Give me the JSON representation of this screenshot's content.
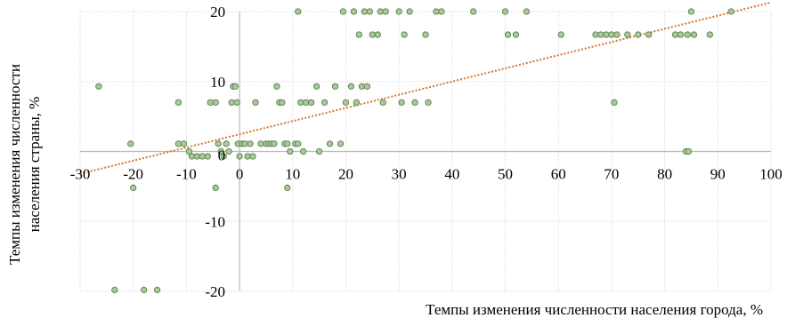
{
  "chart_data": {
    "type": "scatter",
    "title": "",
    "xlabel": "Темпы изменения численности населения города, %",
    "ylabel_lines": [
      "Темпы изменения численности",
      "населения страны, %"
    ],
    "xlim": [
      -30,
      100
    ],
    "ylim": [
      -20,
      20
    ],
    "xticks": [
      -30,
      -20,
      -10,
      0,
      10,
      20,
      30,
      40,
      50,
      60,
      70,
      80,
      90,
      100
    ],
    "yticks": [
      -20,
      -10,
      0,
      10,
      20
    ],
    "grid": true,
    "trendline": {
      "type": "linear",
      "from": [
        -30,
        -3.2
      ],
      "to": [
        100,
        21.3
      ]
    },
    "colors": {
      "marker_fill": "#a9c99a",
      "marker_stroke": "#5a7f4d",
      "trend": "#d9752b",
      "grid": "#dddddd",
      "axis": "#bbbbbb"
    },
    "points": [
      [
        -26.5,
        9.3
      ],
      [
        -23.5,
        -19.8
      ],
      [
        -18,
        -19.8
      ],
      [
        -15.5,
        -19.8
      ],
      [
        -20,
        -5.2
      ],
      [
        -20.5,
        1.1
      ],
      [
        -11.5,
        7
      ],
      [
        -11.5,
        1.1
      ],
      [
        -10.5,
        1.1
      ],
      [
        -9.5,
        0
      ],
      [
        -9,
        -0.7
      ],
      [
        -8,
        -0.7
      ],
      [
        -7,
        -0.7
      ],
      [
        -6,
        -0.7
      ],
      [
        -5.5,
        7
      ],
      [
        -4.5,
        7
      ],
      [
        -4,
        1.1
      ],
      [
        -3.5,
        0
      ],
      [
        -3,
        -0.7
      ],
      [
        -2.5,
        1.1
      ],
      [
        -4.5,
        -5.2
      ],
      [
        -2,
        0
      ],
      [
        -1.5,
        7
      ],
      [
        -1.2,
        9.3
      ],
      [
        -0.8,
        9.3
      ],
      [
        -0.5,
        7
      ],
      [
        -0.3,
        1.1
      ],
      [
        0,
        -0.7
      ],
      [
        0.5,
        1.1
      ],
      [
        1,
        1.1
      ],
      [
        1.5,
        -0.7
      ],
      [
        2,
        1.1
      ],
      [
        2.5,
        -0.7
      ],
      [
        3,
        7
      ],
      [
        4,
        1.1
      ],
      [
        5,
        1.1
      ],
      [
        5.5,
        1.1
      ],
      [
        6,
        1.1
      ],
      [
        6.5,
        1.1
      ],
      [
        7,
        9.3
      ],
      [
        7.5,
        7
      ],
      [
        8,
        7
      ],
      [
        8.5,
        1.1
      ],
      [
        9,
        1.1
      ],
      [
        9.5,
        0
      ],
      [
        9,
        -5.2
      ],
      [
        10.5,
        1.1
      ],
      [
        11,
        1.1
      ],
      [
        11.5,
        7
      ],
      [
        11,
        20
      ],
      [
        12,
        0
      ],
      [
        12.5,
        7
      ],
      [
        13.5,
        7
      ],
      [
        14.5,
        9.3
      ],
      [
        15,
        0
      ],
      [
        16,
        7
      ],
      [
        17,
        1.1
      ],
      [
        18,
        9.3
      ],
      [
        19,
        1.1
      ],
      [
        19.5,
        20
      ],
      [
        20,
        7
      ],
      [
        21,
        9.3
      ],
      [
        21.5,
        20
      ],
      [
        22,
        7
      ],
      [
        22.5,
        16.7
      ],
      [
        23,
        9.3
      ],
      [
        23.5,
        20
      ],
      [
        24,
        9.3
      ],
      [
        24.5,
        20
      ],
      [
        25,
        16.7
      ],
      [
        26,
        16.7
      ],
      [
        26.5,
        20
      ],
      [
        27,
        7
      ],
      [
        27.5,
        20
      ],
      [
        30,
        20
      ],
      [
        30.5,
        7
      ],
      [
        31,
        16.7
      ],
      [
        32,
        20
      ],
      [
        33,
        7
      ],
      [
        35,
        16.7
      ],
      [
        35.5,
        7
      ],
      [
        37,
        20
      ],
      [
        38,
        20
      ],
      [
        44,
        20
      ],
      [
        50,
        20
      ],
      [
        50.5,
        16.7
      ],
      [
        52,
        16.7
      ],
      [
        54,
        20
      ],
      [
        60.5,
        16.7
      ],
      [
        67,
        16.7
      ],
      [
        68,
        16.7
      ],
      [
        69,
        16.7
      ],
      [
        70,
        16.7
      ],
      [
        70.5,
        7
      ],
      [
        71,
        16.7
      ],
      [
        73,
        16.7
      ],
      [
        75,
        16.7
      ],
      [
        77,
        16.7
      ],
      [
        82,
        16.7
      ],
      [
        83,
        16.7
      ],
      [
        84,
        0
      ],
      [
        84.3,
        16.7
      ],
      [
        84.5,
        0
      ],
      [
        85,
        20
      ],
      [
        85.5,
        16.7
      ],
      [
        88.5,
        16.7
      ],
      [
        92.5,
        20
      ]
    ]
  }
}
